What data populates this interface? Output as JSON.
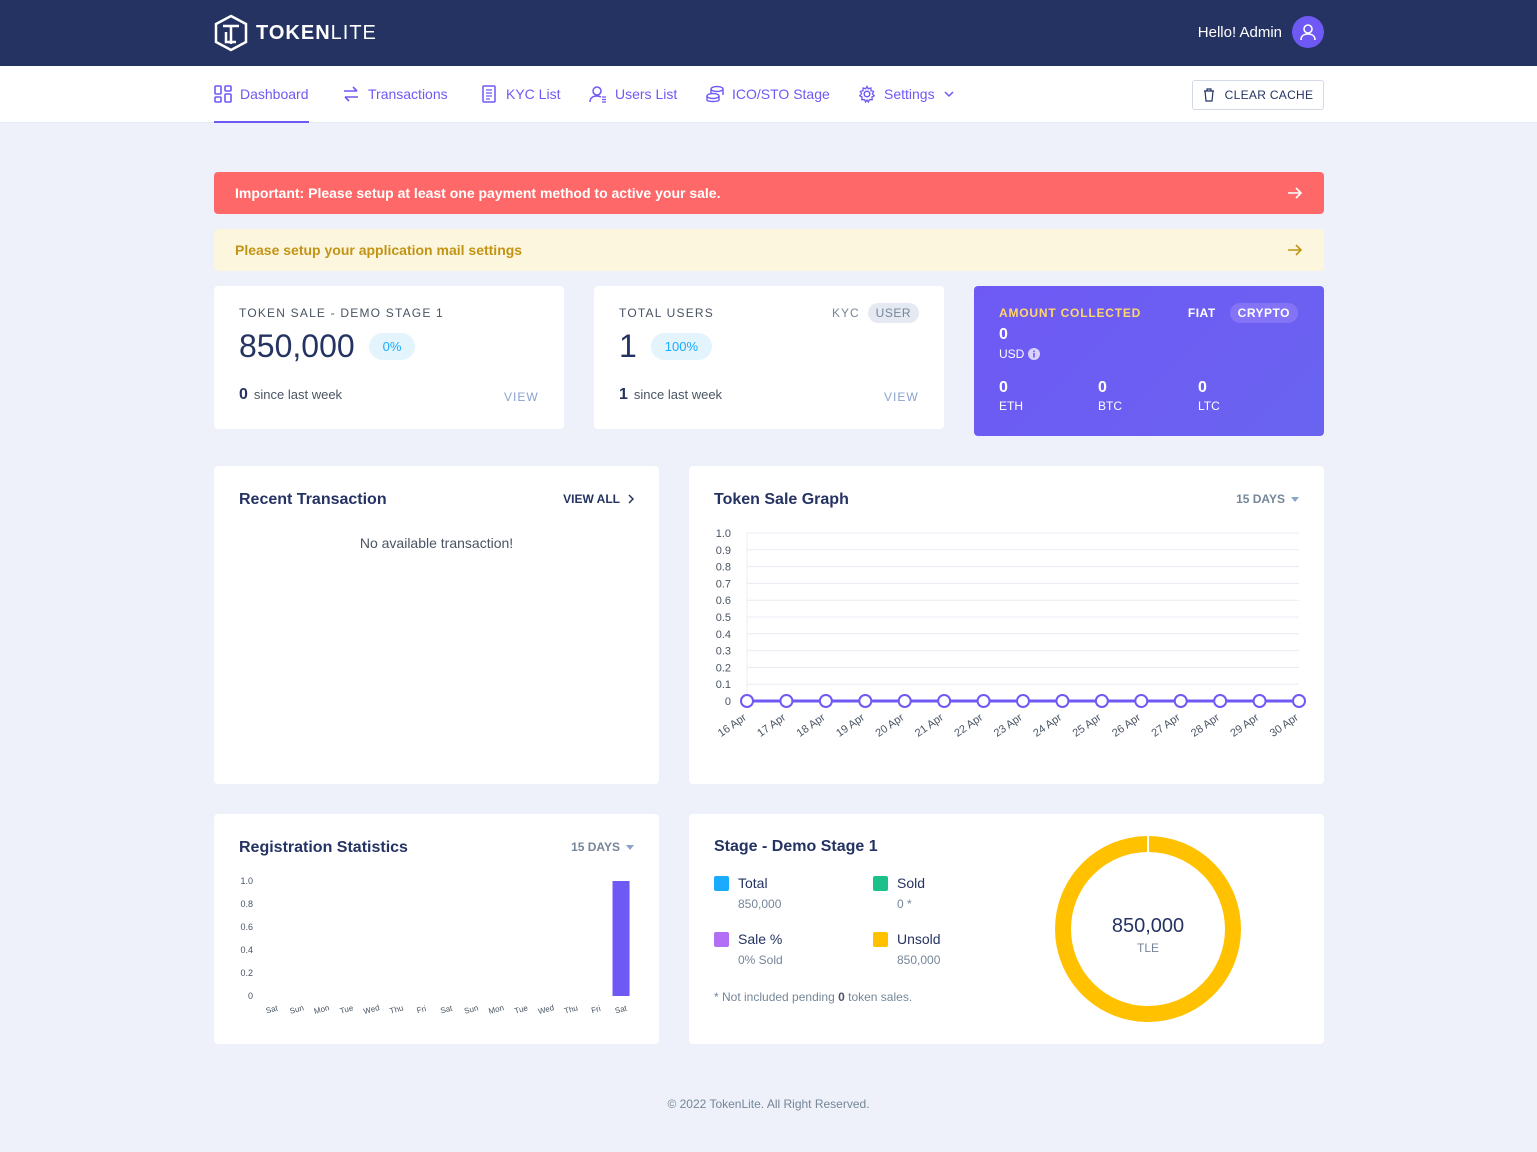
{
  "brand": {
    "name_bold": "TOKEN",
    "name_light": "LITE"
  },
  "header": {
    "greeting": "Hello! Admin"
  },
  "nav": {
    "items": [
      {
        "label": "Dashboard",
        "icon": "dashboard-icon"
      },
      {
        "label": "Transactions",
        "icon": "transfer-icon"
      },
      {
        "label": "KYC List",
        "icon": "document-icon"
      },
      {
        "label": "Users List",
        "icon": "users-icon"
      },
      {
        "label": "ICO/STO Stage",
        "icon": "coins-icon"
      },
      {
        "label": "Settings",
        "icon": "gear-icon"
      }
    ],
    "clear_cache": "CLEAR CACHE"
  },
  "alerts": {
    "danger": "Important: Please setup at least one payment method to active your sale.",
    "warning": "Please setup your application mail settings"
  },
  "token_sale": {
    "title": "TOKEN SALE - DEMO STAGE 1",
    "amount": "850,000",
    "percent": "0%",
    "since_value": "0",
    "since_label": "since last week",
    "view": "VIEW"
  },
  "total_users": {
    "title": "TOTAL USERS",
    "kyc": "KYC",
    "user": "USER",
    "count": "1",
    "percent": "100%",
    "since_value": "1",
    "since_label": "since last week",
    "view": "VIEW"
  },
  "amount_collected": {
    "title": "AMOUNT COLLECTED",
    "fiat": "FIAT",
    "crypto": "CRYPTO",
    "usd_value": "0",
    "usd_label": "USD",
    "eth_value": "0",
    "eth_label": "ETH",
    "btc_value": "0",
    "btc_label": "BTC",
    "ltc_value": "0",
    "ltc_label": "LTC"
  },
  "recent_transaction": {
    "title": "Recent Transaction",
    "view_all": "VIEW ALL",
    "empty": "No available transaction!"
  },
  "token_sale_graph": {
    "title": "Token Sale Graph",
    "range": "15 DAYS"
  },
  "registration_stats": {
    "title": "Registration Statistics",
    "range": "15 DAYS"
  },
  "stage": {
    "title": "Stage - Demo Stage 1",
    "total_label": "Total",
    "total_value": "850,000",
    "sold_label": "Sold",
    "sold_value": "0 *",
    "sale_label": "Sale %",
    "sale_value": "0% Sold",
    "unsold_label": "Unsold",
    "unsold_value": "850,000",
    "note_prefix": "* Not included pending ",
    "note_value": "0",
    "note_suffix": " token sales.",
    "donut_value": "850,000",
    "donut_unit": "TLE"
  },
  "footer": "© 2022 TokenLite. All Right Reserved.",
  "colors": {
    "topbar": "#253363",
    "accent": "#6e59f5",
    "danger": "#ff6868",
    "warning_bg": "#fdf6de",
    "total": "#1babfe",
    "sold": "#1cc08a",
    "sale": "#b26ef5",
    "unsold": "#ffc100"
  },
  "chart_data": [
    {
      "type": "line",
      "title": "Token Sale Graph",
      "x": [
        "16 Apr",
        "17 Apr",
        "18 Apr",
        "19 Apr",
        "20 Apr",
        "21 Apr",
        "22 Apr",
        "23 Apr",
        "24 Apr",
        "25 Apr",
        "26 Apr",
        "27 Apr",
        "28 Apr",
        "29 Apr",
        "30 Apr"
      ],
      "values": [
        0,
        0,
        0,
        0,
        0,
        0,
        0,
        0,
        0,
        0,
        0,
        0,
        0,
        0,
        0
      ],
      "yticks": [
        "1.0",
        "0.9",
        "0.8",
        "0.7",
        "0.6",
        "0.5",
        "0.4",
        "0.3",
        "0.2",
        "0.1",
        "0"
      ],
      "ylim": [
        0,
        1
      ],
      "grid": true
    },
    {
      "type": "bar",
      "title": "Registration Statistics",
      "categories": [
        "Sat",
        "Sun",
        "Mon",
        "Tue",
        "Wed",
        "Thu",
        "Fri",
        "Sat",
        "Sun",
        "Mon",
        "Tue",
        "Wed",
        "Thu",
        "Fri",
        "Sat"
      ],
      "values": [
        0,
        0,
        0,
        0,
        0,
        0,
        0,
        0,
        0,
        0,
        0,
        0,
        0,
        0,
        1
      ],
      "yticks": [
        "1.0",
        "0.8",
        "0.6",
        "0.4",
        "0.2",
        "0"
      ],
      "ylim": [
        0,
        1
      ],
      "grid": false
    },
    {
      "type": "pie",
      "title": "Stage - Demo Stage 1",
      "categories": [
        "Sold",
        "Unsold"
      ],
      "values": [
        0,
        850000
      ]
    }
  ]
}
